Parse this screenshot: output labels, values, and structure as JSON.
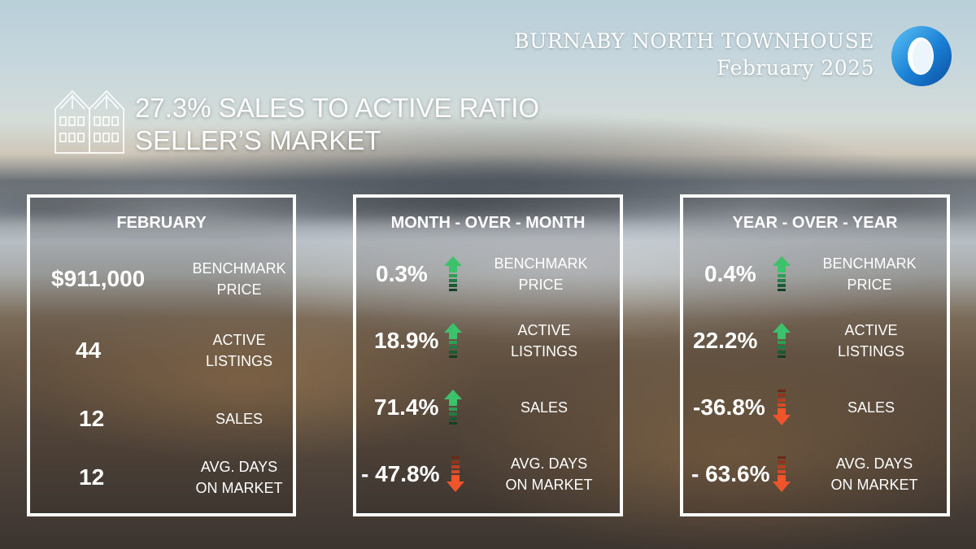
{
  "header": {
    "title": "BURNABY NORTH TOWNHOUSE",
    "subtitle": "February 2025"
  },
  "summary": {
    "ratio_line": "27.3% SALES TO ACTIVE RATIO",
    "market_line": "SELLER’S MARKET"
  },
  "colors": {
    "up": "#3cc26a",
    "down": "#f0542a",
    "logo_blue": "#1a7fd4"
  },
  "icons": {
    "building": "townhouse-icon",
    "logo": "ring-logo"
  },
  "panels": [
    {
      "title": "FEBRUARY",
      "rows": [
        {
          "value": "$911,000",
          "label1": "BENCHMARK",
          "label2": "PRICE"
        },
        {
          "value": "44",
          "label1": "ACTIVE",
          "label2": "LISTINGS"
        },
        {
          "value": "12",
          "label1": "SALES",
          "label2": ""
        },
        {
          "value": "12",
          "label1": "AVG. DAYS",
          "label2": "ON MARKET"
        }
      ]
    },
    {
      "title": "MONTH - OVER - MONTH",
      "rows": [
        {
          "value": "0.3%",
          "direction": "up",
          "label1": "BENCHMARK",
          "label2": "PRICE"
        },
        {
          "value": "18.9%",
          "direction": "up",
          "label1": "ACTIVE",
          "label2": "LISTINGS"
        },
        {
          "value": "71.4%",
          "direction": "up",
          "label1": "SALES",
          "label2": ""
        },
        {
          "value": "- 47.8%",
          "direction": "down",
          "label1": "AVG. DAYS",
          "label2": "ON MARKET"
        }
      ]
    },
    {
      "title": "YEAR - OVER - YEAR",
      "rows": [
        {
          "value": "0.4%",
          "direction": "up",
          "label1": "BENCHMARK",
          "label2": "PRICE"
        },
        {
          "value": "22.2%",
          "direction": "up",
          "label1": "ACTIVE",
          "label2": "LISTINGS"
        },
        {
          "value": "-36.8%",
          "direction": "down",
          "label1": "SALES",
          "label2": ""
        },
        {
          "value": "- 63.6%",
          "direction": "down",
          "label1": "AVG. DAYS",
          "label2": "ON MARKET"
        }
      ]
    }
  ]
}
